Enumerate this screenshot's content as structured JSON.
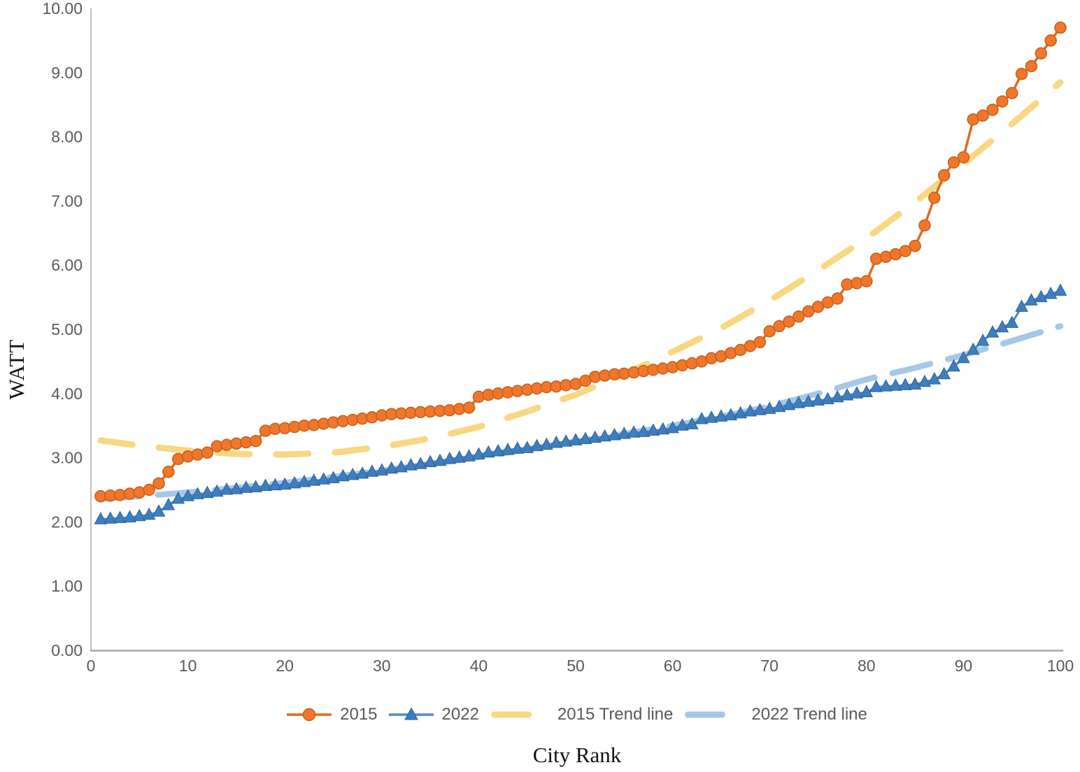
{
  "chart_data": {
    "type": "line",
    "title": "",
    "xlabel": "City Rank",
    "ylabel": "WATT",
    "xlim": [
      0,
      100
    ],
    "ylim": [
      0,
      10
    ],
    "grid": false,
    "legend_position": "bottom",
    "x_ticks": [
      "0",
      "10",
      "20",
      "30",
      "40",
      "50",
      "60",
      "70",
      "80",
      "90",
      "100"
    ],
    "y_ticks": [
      "0.00",
      "1.00",
      "2.00",
      "3.00",
      "4.00",
      "5.00",
      "6.00",
      "7.00",
      "8.00",
      "9.00",
      "10.00"
    ],
    "x": "city rank 1..100",
    "series": [
      {
        "name": "2015",
        "marker": "circle",
        "marker_color": "#F0762B",
        "marker_stroke": "#C75F17",
        "line_color": "#E06A1E",
        "values": [
          2.4,
          2.41,
          2.42,
          2.44,
          2.46,
          2.5,
          2.6,
          2.78,
          2.98,
          3.02,
          3.05,
          3.08,
          3.18,
          3.2,
          3.22,
          3.24,
          3.26,
          3.42,
          3.45,
          3.46,
          3.48,
          3.5,
          3.51,
          3.53,
          3.55,
          3.57,
          3.59,
          3.61,
          3.63,
          3.66,
          3.68,
          3.69,
          3.7,
          3.71,
          3.72,
          3.73,
          3.74,
          3.76,
          3.78,
          3.95,
          3.98,
          4.0,
          4.02,
          4.04,
          4.06,
          4.08,
          4.1,
          4.11,
          4.13,
          4.15,
          4.2,
          4.26,
          4.28,
          4.3,
          4.31,
          4.33,
          4.35,
          4.37,
          4.39,
          4.41,
          4.44,
          4.47,
          4.5,
          4.55,
          4.58,
          4.63,
          4.68,
          4.74,
          4.8,
          4.97,
          5.05,
          5.12,
          5.2,
          5.28,
          5.35,
          5.42,
          5.48,
          5.7,
          5.72,
          5.75,
          6.1,
          6.13,
          6.17,
          6.22,
          6.3,
          6.62,
          7.05,
          7.4,
          7.6,
          7.68,
          8.27,
          8.33,
          8.42,
          8.55,
          8.68,
          8.98,
          9.1,
          9.3,
          9.5,
          9.7
        ]
      },
      {
        "name": "2022",
        "marker": "triangle",
        "marker_color": "#3E7DC1",
        "marker_stroke": "#2F6496",
        "line_color": "#4E8CCB",
        "values": [
          2.04,
          2.05,
          2.06,
          2.07,
          2.09,
          2.11,
          2.16,
          2.26,
          2.36,
          2.4,
          2.43,
          2.45,
          2.47,
          2.5,
          2.51,
          2.53,
          2.54,
          2.56,
          2.57,
          2.58,
          2.6,
          2.62,
          2.64,
          2.66,
          2.68,
          2.71,
          2.73,
          2.75,
          2.78,
          2.8,
          2.83,
          2.85,
          2.88,
          2.9,
          2.93,
          2.95,
          2.98,
          3.0,
          3.02,
          3.05,
          3.08,
          3.1,
          3.12,
          3.14,
          3.15,
          3.18,
          3.2,
          3.23,
          3.25,
          3.27,
          3.29,
          3.31,
          3.33,
          3.35,
          3.37,
          3.39,
          3.4,
          3.42,
          3.44,
          3.46,
          3.5,
          3.52,
          3.6,
          3.62,
          3.64,
          3.66,
          3.69,
          3.72,
          3.74,
          3.76,
          3.79,
          3.82,
          3.85,
          3.87,
          3.89,
          3.91,
          3.94,
          3.97,
          4.0,
          4.02,
          4.1,
          4.11,
          4.12,
          4.13,
          4.14,
          4.18,
          4.22,
          4.3,
          4.42,
          4.55,
          4.68,
          4.82,
          4.95,
          5.03,
          5.1,
          5.35,
          5.45,
          5.5,
          5.55,
          5.6
        ]
      },
      {
        "name": "2015 Trend line",
        "style": "dashed",
        "line_color": "#F8D781",
        "anchor_x": [
          1,
          5,
          10,
          15,
          20,
          25,
          30,
          35,
          40,
          45,
          50,
          55,
          60,
          65,
          70,
          75,
          80,
          85,
          90,
          95,
          100
        ],
        "anchor_y": [
          3.27,
          3.19,
          3.11,
          3.06,
          3.05,
          3.08,
          3.17,
          3.3,
          3.48,
          3.72,
          3.98,
          4.3,
          4.65,
          5.02,
          5.45,
          5.92,
          6.42,
          6.98,
          7.58,
          8.2,
          8.85
        ]
      },
      {
        "name": "2022 Trend line",
        "style": "dashed",
        "line_color": "#A5C8E9",
        "anchor_x": [
          1,
          5,
          10,
          15,
          20,
          25,
          30,
          35,
          40,
          45,
          50,
          55,
          60,
          65,
          70,
          75,
          80,
          85,
          90,
          95,
          100
        ],
        "anchor_y": [
          2.36,
          2.4,
          2.46,
          2.53,
          2.61,
          2.7,
          2.8,
          2.9,
          3.01,
          3.13,
          3.25,
          3.37,
          3.5,
          3.64,
          3.8,
          4.0,
          4.22,
          4.4,
          4.6,
          4.82,
          5.05
        ]
      }
    ],
    "axis": {
      "line_color": "#BFBFBF",
      "bottom_line_color": "#A6A6A6",
      "tick_text_color": "#595959"
    }
  }
}
